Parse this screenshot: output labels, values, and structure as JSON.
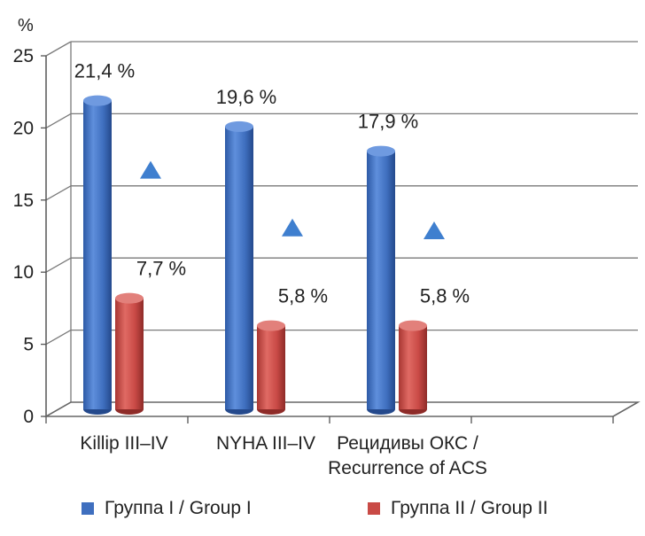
{
  "chart_data": {
    "type": "bar",
    "unit_label": "%",
    "categories": [
      [
        "Killip III–IV"
      ],
      [
        "NYHA III–IV"
      ],
      [
        "Рецидивы ОКС /",
        "Recurrence of ACS"
      ]
    ],
    "series": [
      {
        "name": "Группа I / Group I",
        "values": [
          21.4,
          19.6,
          17.9
        ],
        "labels": [
          "21,4 %",
          "19,6 %",
          "17,9 %"
        ],
        "color": "#3f6fbf"
      },
      {
        "name": "Группа II / Group II",
        "values": [
          7.7,
          5.8,
          5.8
        ],
        "labels": [
          "7,7 %",
          "5,8 %",
          "5,8 %"
        ],
        "color": "#c94a46"
      }
    ],
    "markers": {
      "shape": "triangle",
      "color": "#3f7fcf",
      "values": [
        17.1,
        13.1,
        12.9
      ]
    },
    "ylim": [
      0,
      25
    ],
    "yticks": [
      0,
      5,
      10,
      15,
      20,
      25
    ],
    "grid": true,
    "legend_position": "bottom"
  }
}
